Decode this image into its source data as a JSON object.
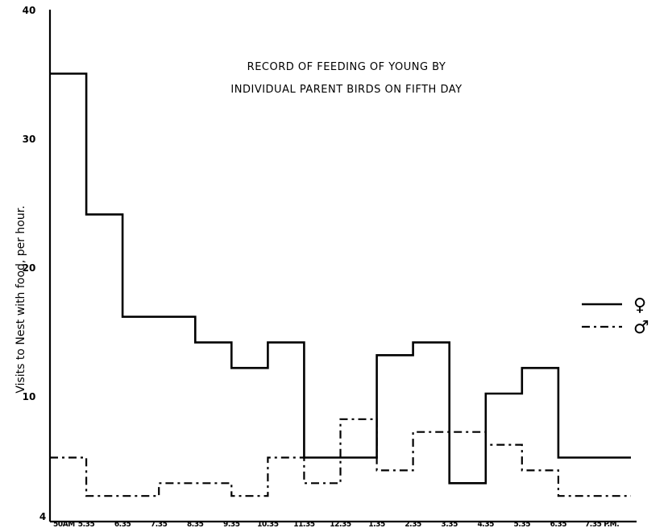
{
  "chart_data": {
    "type": "line",
    "step": true,
    "title_lines": [
      "RECORD OF FEEDING OF YOUNG BY",
      "INDIVIDUAL PARENT BIRDS ON FIFTH DAY"
    ],
    "ylabel": "Visits to Nest with food, per hour.",
    "xlabel": "",
    "ylim": [
      0,
      40
    ],
    "yticks": [
      "40",
      "30",
      "20",
      "10"
    ],
    "y_origin_label": "4",
    "x_tick_labels": [
      "50AM",
      "5.35",
      "6.35",
      "7.35",
      "8.35",
      "9.35",
      "10.35",
      "11.35",
      "12.35",
      "1.35",
      "2.35",
      "3.35",
      "4.35",
      "5.35",
      "6.35",
      "7.35 P.M."
    ],
    "series": [
      {
        "name": "♀",
        "style": "solid",
        "values": [
          35,
          24,
          16,
          16,
          14,
          12,
          14,
          5,
          5,
          13,
          14,
          3,
          10,
          12,
          5,
          5
        ]
      },
      {
        "name": "♂",
        "style": "dashdot",
        "values": [
          5,
          2,
          2,
          3,
          3,
          2,
          5,
          3,
          8,
          4,
          7,
          7,
          6,
          4,
          2,
          2
        ]
      }
    ],
    "legend_placement": "right"
  }
}
